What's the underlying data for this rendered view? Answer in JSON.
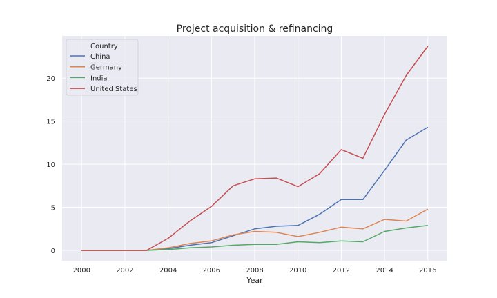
{
  "chart_data": {
    "type": "line",
    "title": "Project acquisition & refinancing",
    "xlabel": "Year",
    "ylabel": "",
    "x": [
      2000,
      2001,
      2002,
      2003,
      2004,
      2005,
      2006,
      2007,
      2008,
      2009,
      2010,
      2011,
      2012,
      2013,
      2014,
      2015,
      2016
    ],
    "xticks": [
      2000,
      2002,
      2004,
      2006,
      2008,
      2010,
      2012,
      2014,
      2016
    ],
    "yticks": [
      0,
      5,
      10,
      15,
      20
    ],
    "xlim": [
      1999.1,
      2016.9
    ],
    "ylim": [
      -1.2,
      24.9
    ],
    "grid": true,
    "legend_title": "Country",
    "legend_position": "top-left",
    "series": [
      {
        "name": "China",
        "color": "#4c72b0",
        "values": [
          0,
          0,
          0,
          0,
          0.2,
          0.6,
          0.9,
          1.7,
          2.5,
          2.8,
          2.9,
          4.2,
          5.9,
          5.9,
          9.3,
          12.8,
          14.3
        ]
      },
      {
        "name": "Germany",
        "color": "#dd8452",
        "values": [
          0,
          0,
          0,
          0,
          0.3,
          0.8,
          1.1,
          1.8,
          2.2,
          2.1,
          1.6,
          2.1,
          2.7,
          2.5,
          3.6,
          3.4,
          4.8
        ]
      },
      {
        "name": "India",
        "color": "#55a868",
        "values": [
          0,
          0,
          0,
          0,
          0.1,
          0.3,
          0.4,
          0.6,
          0.7,
          0.7,
          1.0,
          0.9,
          1.1,
          1.0,
          2.2,
          2.6,
          2.9
        ]
      },
      {
        "name": "United States",
        "color": "#c44e52",
        "values": [
          0,
          0,
          0,
          0,
          1.4,
          3.4,
          5.1,
          7.5,
          8.3,
          8.4,
          7.4,
          8.9,
          11.7,
          10.7,
          15.8,
          20.3,
          23.7
        ]
      }
    ]
  }
}
